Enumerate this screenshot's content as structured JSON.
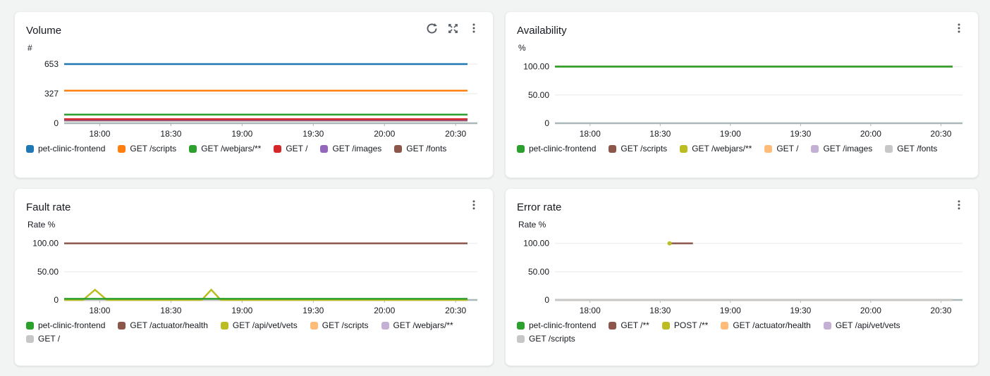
{
  "page": {
    "background": "#f2f3f3",
    "time_window": "17:45 - 20:35"
  },
  "palette": {
    "blue": "#1f77b4",
    "orange": "#ff7f0e",
    "green": "#2ca02c",
    "red": "#d62728",
    "purple": "#9467bd",
    "brown": "#8c564b",
    "olive": "#bcbd22",
    "light_orange": "#ffbb78",
    "light_purple": "#c5b0d5",
    "light_gray": "#c7c7c7",
    "axis": "#aab7b8",
    "grid": "#eef0f1",
    "icon": "#545b64"
  },
  "panels": [
    {
      "id": "volume",
      "title": "Volume",
      "actions": [
        "refresh-icon",
        "expand-icon",
        "menu-icon"
      ],
      "chart_data": {
        "type": "line",
        "title": "Volume",
        "ylabel": "#",
        "ylim": [
          0,
          700
        ],
        "yticks": [
          {
            "v": 0,
            "label": "0"
          },
          {
            "v": 327,
            "label": "327"
          },
          {
            "v": 653,
            "label": "653"
          }
        ],
        "x_domain_minutes": [
          0,
          170
        ],
        "xticks": [
          {
            "t": 15,
            "label": "18:00"
          },
          {
            "t": 45,
            "label": "18:30"
          },
          {
            "t": 75,
            "label": "19:00"
          },
          {
            "t": 105,
            "label": "19:30"
          },
          {
            "t": 135,
            "label": "20:00"
          },
          {
            "t": 165,
            "label": "20:30"
          }
        ],
        "series": [
          {
            "name": "GET /fonts",
            "color": "#8c564b",
            "points": [
              [
                0,
                30
              ],
              [
                170,
                30
              ]
            ]
          },
          {
            "name": "GET /images",
            "color": "#9467bd",
            "points": [
              [
                0,
                38
              ],
              [
                170,
                38
              ]
            ]
          },
          {
            "name": "GET /",
            "color": "#d62728",
            "points": [
              [
                0,
                45
              ],
              [
                170,
                45
              ]
            ]
          },
          {
            "name": "GET /webjars/**",
            "color": "#2ca02c",
            "points": [
              [
                0,
                95
              ],
              [
                170,
                95
              ]
            ]
          },
          {
            "name": "GET /scripts",
            "color": "#ff7f0e",
            "points": [
              [
                0,
                360
              ],
              [
                170,
                360
              ]
            ]
          },
          {
            "name": "pet-clinic-frontend",
            "color": "#1f77b4",
            "points": [
              [
                0,
                653
              ],
              [
                170,
                653
              ]
            ]
          }
        ]
      },
      "legend": [
        {
          "label": "pet-clinic-frontend",
          "color": "#1f77b4"
        },
        {
          "label": "GET /scripts",
          "color": "#ff7f0e"
        },
        {
          "label": "GET /webjars/**",
          "color": "#2ca02c"
        },
        {
          "label": "GET /",
          "color": "#d62728"
        },
        {
          "label": "GET /images",
          "color": "#9467bd"
        },
        {
          "label": "GET /fonts",
          "color": "#8c564b"
        }
      ]
    },
    {
      "id": "availability",
      "title": "Availability",
      "actions": [
        "menu-icon"
      ],
      "chart_data": {
        "type": "line",
        "title": "Availability",
        "ylabel": "%",
        "ylim": [
          0,
          112
        ],
        "yticks": [
          {
            "v": 0,
            "label": "0"
          },
          {
            "v": 50,
            "label": "50.00"
          },
          {
            "v": 100,
            "label": "100.00"
          }
        ],
        "x_domain_minutes": [
          0,
          170
        ],
        "xticks": [
          {
            "t": 15,
            "label": "18:00"
          },
          {
            "t": 45,
            "label": "18:30"
          },
          {
            "t": 75,
            "label": "19:00"
          },
          {
            "t": 105,
            "label": "19:30"
          },
          {
            "t": 135,
            "label": "20:00"
          },
          {
            "t": 165,
            "label": "20:30"
          }
        ],
        "series": [
          {
            "name": "GET /",
            "color": "#ffbb78",
            "points": [
              [
                0,
                100
              ],
              [
                170,
                100
              ]
            ]
          },
          {
            "name": "GET /images",
            "color": "#c5b0d5",
            "points": [
              [
                0,
                100
              ],
              [
                170,
                100
              ]
            ]
          },
          {
            "name": "GET /fonts",
            "color": "#c7c7c7",
            "points": [
              [
                0,
                100
              ],
              [
                170,
                100
              ]
            ]
          },
          {
            "name": "GET /scripts",
            "color": "#8c564b",
            "points": [
              [
                0,
                100
              ],
              [
                170,
                100
              ]
            ]
          },
          {
            "name": "GET /webjars/**",
            "color": "#bcbd22",
            "points": [
              [
                0,
                100
              ],
              [
                170,
                100
              ]
            ]
          },
          {
            "name": "pet-clinic-frontend",
            "color": "#2ca02c",
            "points": [
              [
                0,
                100
              ],
              [
                170,
                100
              ]
            ]
          }
        ]
      },
      "legend": [
        {
          "label": "pet-clinic-frontend",
          "color": "#2ca02c"
        },
        {
          "label": "GET /scripts",
          "color": "#8c564b"
        },
        {
          "label": "GET /webjars/**",
          "color": "#bcbd22"
        },
        {
          "label": "GET /",
          "color": "#ffbb78"
        },
        {
          "label": "GET /images",
          "color": "#c5b0d5"
        },
        {
          "label": "GET /fonts",
          "color": "#c7c7c7"
        }
      ]
    },
    {
      "id": "fault-rate",
      "title": "Fault rate",
      "actions": [
        "menu-icon"
      ],
      "chart_data": {
        "type": "line",
        "title": "Fault rate",
        "ylabel": "Rate %",
        "ylim": [
          0,
          112
        ],
        "yticks": [
          {
            "v": 0,
            "label": "0"
          },
          {
            "v": 50,
            "label": "50.00"
          },
          {
            "v": 100,
            "label": "100.00"
          }
        ],
        "x_domain_minutes": [
          0,
          170
        ],
        "xticks": [
          {
            "t": 15,
            "label": "18:00"
          },
          {
            "t": 45,
            "label": "18:30"
          },
          {
            "t": 75,
            "label": "19:00"
          },
          {
            "t": 105,
            "label": "19:30"
          },
          {
            "t": 135,
            "label": "20:00"
          },
          {
            "t": 165,
            "label": "20:30"
          }
        ],
        "series": [
          {
            "name": "GET /scripts",
            "color": "#ffbb78",
            "points": [
              [
                0,
                0
              ],
              [
                170,
                0
              ]
            ]
          },
          {
            "name": "GET /webjars/**",
            "color": "#c5b0d5",
            "points": [
              [
                0,
                0
              ],
              [
                170,
                0
              ]
            ]
          },
          {
            "name": "GET /",
            "color": "#c7c7c7",
            "points": [
              [
                0,
                0
              ],
              [
                170,
                0
              ]
            ]
          },
          {
            "name": "GET /actuator/health",
            "color": "#8c564b",
            "points": [
              [
                0,
                100
              ],
              [
                170,
                100
              ]
            ]
          },
          {
            "name": "GET /api/vet/vets",
            "color": "#bcbd22",
            "points": [
              [
                0,
                0
              ],
              [
                8,
                0
              ],
              [
                13,
                18
              ],
              [
                18,
                0
              ],
              [
                58,
                0
              ],
              [
                62,
                18
              ],
              [
                66,
                0
              ],
              [
                170,
                0
              ]
            ]
          },
          {
            "name": "pet-clinic-frontend",
            "color": "#2ca02c",
            "points": [
              [
                0,
                2
              ],
              [
                170,
                2
              ]
            ]
          }
        ]
      },
      "legend": [
        {
          "label": "pet-clinic-frontend",
          "color": "#2ca02c"
        },
        {
          "label": "GET /actuator/health",
          "color": "#8c564b"
        },
        {
          "label": "GET /api/vet/vets",
          "color": "#bcbd22"
        },
        {
          "label": "GET /scripts",
          "color": "#ffbb78"
        },
        {
          "label": "GET /webjars/**",
          "color": "#c5b0d5"
        },
        {
          "label": "GET /",
          "color": "#c7c7c7"
        }
      ]
    },
    {
      "id": "error-rate",
      "title": "Error rate",
      "actions": [
        "menu-icon"
      ],
      "chart_data": {
        "type": "line",
        "title": "Error rate",
        "ylabel": "Rate %",
        "ylim": [
          0,
          112
        ],
        "yticks": [
          {
            "v": 0,
            "label": "0"
          },
          {
            "v": 50,
            "label": "50.00"
          },
          {
            "v": 100,
            "label": "100.00"
          }
        ],
        "x_domain_minutes": [
          0,
          170
        ],
        "xticks": [
          {
            "t": 15,
            "label": "18:00"
          },
          {
            "t": 45,
            "label": "18:30"
          },
          {
            "t": 75,
            "label": "19:00"
          },
          {
            "t": 105,
            "label": "19:30"
          },
          {
            "t": 135,
            "label": "20:00"
          },
          {
            "t": 165,
            "label": "20:30"
          }
        ],
        "series": [
          {
            "name": "pet-clinic-frontend",
            "color": "#2ca02c",
            "points": [
              [
                0,
                0
              ],
              [
                170,
                0
              ]
            ]
          },
          {
            "name": "GET /actuator/health",
            "color": "#ffbb78",
            "points": [
              [
                0,
                0
              ],
              [
                170,
                0
              ]
            ]
          },
          {
            "name": "GET /api/vet/vets",
            "color": "#c5b0d5",
            "points": [
              [
                0,
                0
              ],
              [
                170,
                0
              ]
            ]
          },
          {
            "name": "GET /scripts",
            "color": "#c7c7c7",
            "points": [
              [
                0,
                0
              ],
              [
                170,
                0
              ]
            ]
          },
          {
            "name": "GET /**",
            "color": "#8c564b",
            "points": [
              [
                49.5,
                100
              ],
              [
                59,
                100
              ]
            ]
          },
          {
            "name": "POST /**",
            "color": "#bcbd22",
            "points": [
              [
                49,
                100
              ]
            ]
          }
        ]
      },
      "legend": [
        {
          "label": "pet-clinic-frontend",
          "color": "#2ca02c"
        },
        {
          "label": "GET /**",
          "color": "#8c564b"
        },
        {
          "label": "POST /**",
          "color": "#bcbd22"
        },
        {
          "label": "GET /actuator/health",
          "color": "#ffbb78"
        },
        {
          "label": "GET /api/vet/vets",
          "color": "#c5b0d5"
        },
        {
          "label": "GET /scripts",
          "color": "#c7c7c7"
        }
      ]
    }
  ]
}
